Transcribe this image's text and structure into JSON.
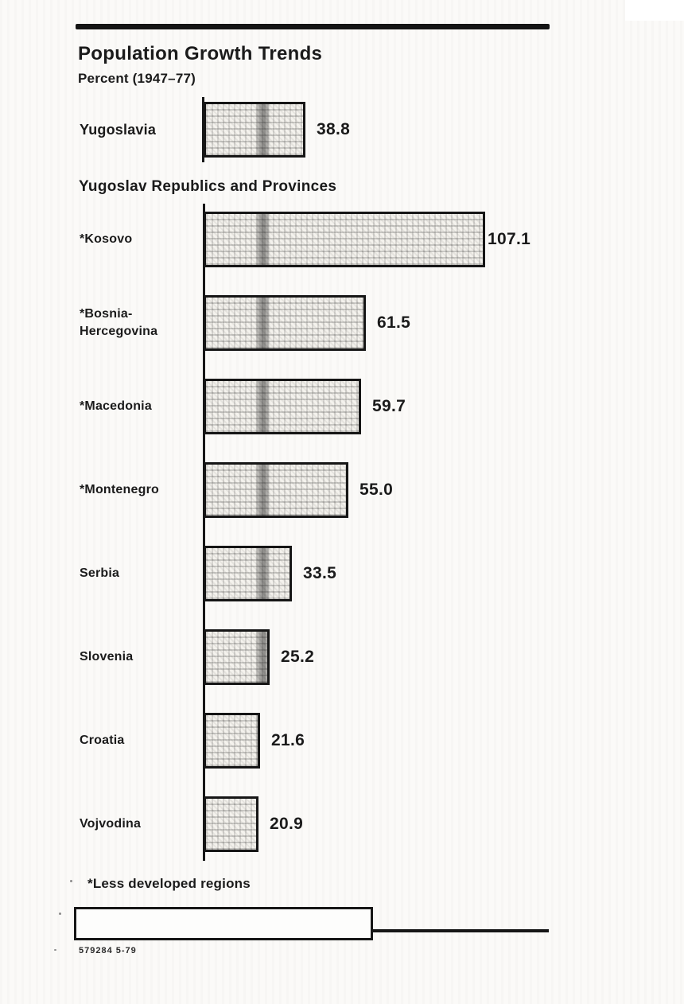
{
  "page": {
    "title": "Population Growth Trends",
    "subtitle": "Percent (1947–77)",
    "section_heading": "Yugoslav Republics and Provinces",
    "footnote": "*Less developed regions",
    "footer_code": "579284 5-79"
  },
  "colors": {
    "ink": "#161616",
    "paper": "#fbfaf8",
    "bar_fill": "#f4f2ed"
  },
  "chart_data": {
    "type": "bar",
    "orientation": "horizontal",
    "title": "Population Growth Trends",
    "xlabel": "Percent",
    "ylabel": "",
    "period": "1947–77",
    "xlim": [
      0,
      110
    ],
    "grid": false,
    "legend": "none",
    "axis": "single vertical baseline at 0, no ticks",
    "summary": {
      "label": "Yugoslavia",
      "value": 38.8,
      "display": "38.8"
    },
    "group_label": "Yugoslav Republics and Provinces",
    "categories": [
      "*Kosovo",
      "*Bosnia-\nHercegovina",
      "*Macedonia",
      "*Montenegro",
      "Serbia",
      "Slovenia",
      "Croatia",
      "Vojvodina"
    ],
    "values": [
      107.1,
      61.5,
      59.7,
      55.0,
      33.5,
      25.2,
      21.6,
      20.9
    ],
    "value_labels": [
      "107.1",
      "61.5",
      "59.7",
      "55.0",
      "33.5",
      "25.2",
      "21.6",
      "20.9"
    ],
    "footnote": "*Less developed regions"
  }
}
